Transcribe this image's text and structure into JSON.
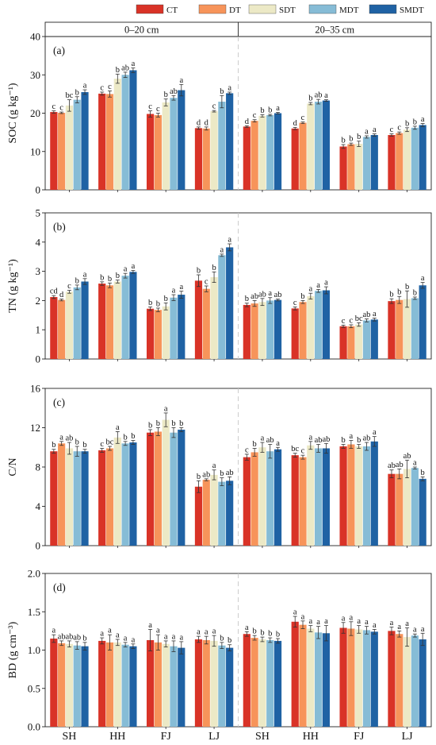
{
  "legend": [
    {
      "label": "CT",
      "color": "#d93327"
    },
    {
      "label": "DT",
      "color": "#f7945a"
    },
    {
      "label": "SDT",
      "color": "#ece9c6"
    },
    {
      "label": "MDT",
      "color": "#86bcd6"
    },
    {
      "label": "SMDT",
      "color": "#1f62a4"
    }
  ],
  "depths": [
    "0–20 cm",
    "20–35 cm"
  ],
  "sites": [
    "SH",
    "HH",
    "FJ",
    "LJ",
    "SH",
    "HH",
    "FJ",
    "LJ"
  ],
  "chart_data": [
    {
      "type": "bar",
      "panel": "(a)",
      "ylabel": "SOC (g kg⁻¹)",
      "ylim": [
        0,
        40
      ],
      "ticks": [
        0,
        10,
        20,
        30,
        40
      ],
      "values": [
        [
          20.3,
          20.1,
          22.0,
          23.5,
          25.5
        ],
        [
          25.1,
          25.0,
          29.0,
          30.0,
          31.2
        ],
        [
          19.8,
          19.5,
          22.8,
          24.0,
          26.0
        ],
        [
          16.1,
          16.0,
          20.5,
          23.0,
          25.2
        ],
        [
          16.5,
          18.0,
          19.3,
          19.5,
          20.0
        ],
        [
          16.0,
          17.5,
          22.5,
          23.0,
          23.3
        ],
        [
          11.3,
          11.9,
          12.0,
          13.8,
          14.3
        ],
        [
          14.3,
          14.8,
          15.7,
          16.2,
          16.9
        ]
      ],
      "errors": [
        [
          0.3,
          0.2,
          1.5,
          0.8,
          0.6
        ],
        [
          0.4,
          0.8,
          1.2,
          0.7,
          0.6
        ],
        [
          0.8,
          0.5,
          0.9,
          0.6,
          1.5
        ],
        [
          0.3,
          0.4,
          0.2,
          1.6,
          0.3
        ],
        [
          0.2,
          0.3,
          0.3,
          0.2,
          0.2
        ],
        [
          0.3,
          0.2,
          0.3,
          0.6,
          0.2
        ],
        [
          0.5,
          0.3,
          0.7,
          0.3,
          0.3
        ],
        [
          0.3,
          0.3,
          0.5,
          0.4,
          0.4
        ]
      ],
      "letters": [
        [
          "c",
          "c",
          "bc",
          "b",
          "a"
        ],
        [
          "c",
          "c",
          "b",
          "ab",
          "a"
        ],
        [
          "c",
          "c",
          "b",
          "ab",
          "a"
        ],
        [
          "d",
          "d",
          "c",
          "b",
          "a"
        ],
        [
          "d",
          "c",
          "b",
          "b",
          "a"
        ],
        [
          "d",
          "c",
          "b",
          "ab",
          "a"
        ],
        [
          "b",
          "b",
          "b",
          "a",
          "a"
        ],
        [
          "c",
          "c",
          "b",
          "b",
          "a"
        ]
      ]
    },
    {
      "type": "bar",
      "panel": "(b)",
      "ylabel": "TN (g kg⁻¹)",
      "ylim": [
        0,
        5
      ],
      "ticks": [
        0,
        1,
        2,
        3,
        4,
        5
      ],
      "values": [
        [
          2.12,
          2.02,
          2.3,
          2.45,
          2.65
        ],
        [
          2.58,
          2.52,
          2.65,
          2.85,
          2.98
        ],
        [
          1.72,
          1.68,
          1.8,
          2.1,
          2.2
        ],
        [
          2.68,
          2.4,
          2.8,
          3.55,
          3.82
        ],
        [
          1.85,
          1.9,
          1.95,
          2.0,
          2.02
        ],
        [
          1.73,
          1.95,
          2.15,
          2.33,
          2.35
        ],
        [
          1.12,
          1.12,
          1.18,
          1.32,
          1.35
        ],
        [
          1.98,
          2.02,
          2.05,
          2.08,
          2.52
        ]
      ],
      "errors": [
        [
          0.05,
          0.03,
          0.05,
          0.08,
          0.1
        ],
        [
          0.06,
          0.08,
          0.05,
          0.08,
          0.05
        ],
        [
          0.06,
          0.06,
          0.12,
          0.1,
          0.12
        ],
        [
          0.2,
          0.1,
          0.18,
          0.04,
          0.12
        ],
        [
          0.06,
          0.1,
          0.12,
          0.1,
          0.03
        ],
        [
          0.05,
          0.05,
          0.1,
          0.05,
          0.12
        ],
        [
          0.04,
          0.05,
          0.06,
          0.05,
          0.05
        ],
        [
          0.08,
          0.12,
          0.28,
          0.04,
          0.1
        ]
      ],
      "letters": [
        [
          "cd",
          "d",
          "c",
          "b",
          "a"
        ],
        [
          "b",
          "b",
          "b",
          "a",
          "a"
        ],
        [
          "b",
          "b",
          "b",
          "a",
          "a"
        ],
        [
          "b",
          "c",
          "b",
          "a",
          "a"
        ],
        [
          "b",
          "ab",
          "ab",
          "a",
          "ab"
        ],
        [
          "c",
          "b",
          "a",
          "a",
          "a"
        ],
        [
          "c",
          "c",
          "bc",
          "ab",
          "a"
        ],
        [
          "b",
          "b",
          "b",
          "b",
          "a"
        ]
      ]
    },
    {
      "type": "bar",
      "panel": "(c)",
      "ylabel": "C/N",
      "ylim": [
        0,
        16
      ],
      "ticks": [
        0,
        4,
        8,
        12,
        16
      ],
      "values": [
        [
          9.6,
          10.4,
          9.9,
          9.6,
          9.6
        ],
        [
          9.7,
          9.9,
          11.0,
          10.4,
          10.5
        ],
        [
          11.5,
          11.6,
          12.8,
          11.5,
          11.8
        ],
        [
          6.0,
          6.7,
          7.2,
          6.5,
          6.6
        ],
        [
          9.0,
          9.5,
          10.0,
          9.6,
          9.8
        ],
        [
          9.2,
          9.0,
          10.2,
          9.9,
          9.9
        ],
        [
          10.1,
          10.3,
          10.1,
          10.1,
          10.6
        ],
        [
          7.3,
          7.3,
          7.8,
          7.9,
          6.8
        ]
      ],
      "errors": [
        [
          0.2,
          0.2,
          0.6,
          0.5,
          0.2
        ],
        [
          0.2,
          0.2,
          0.6,
          0.2,
          0.2
        ],
        [
          0.3,
          0.4,
          0.7,
          0.5,
          0.2
        ],
        [
          0.6,
          0.1,
          0.5,
          0.4,
          0.4
        ],
        [
          0.3,
          0.4,
          0.5,
          0.7,
          0.2
        ],
        [
          0.2,
          0.2,
          0.4,
          0.4,
          0.5
        ],
        [
          0.2,
          0.4,
          0.2,
          0.4,
          0.5
        ],
        [
          0.4,
          0.5,
          0.9,
          0.1,
          0.2
        ]
      ],
      "letters": [
        [
          "b",
          "a",
          "ab",
          "b",
          "b"
        ],
        [
          "c",
          "bc",
          "a",
          "b",
          "b"
        ],
        [
          "b",
          "b",
          "a",
          "b",
          "b"
        ],
        [
          "b",
          "ab",
          "a",
          "b",
          "ab"
        ],
        [
          "c",
          "b",
          "a",
          "ab",
          "a"
        ],
        [
          "bc",
          "c",
          "a",
          "ab",
          "ab"
        ],
        [
          "b",
          "a",
          "b",
          "ab",
          "a"
        ],
        [
          "ab",
          "ab",
          "ab",
          "a",
          "b"
        ]
      ]
    },
    {
      "type": "bar",
      "panel": "(d)",
      "ylabel": "BD (g cm⁻³)",
      "ylim": [
        0,
        2
      ],
      "ticks": [
        "0.0",
        "0.5",
        "1.0",
        "1.5",
        "2.0"
      ],
      "values": [
        [
          1.15,
          1.09,
          1.08,
          1.06,
          1.05
        ],
        [
          1.12,
          1.1,
          1.1,
          1.07,
          1.05
        ],
        [
          1.13,
          1.1,
          1.08,
          1.05,
          1.03
        ],
        [
          1.14,
          1.13,
          1.12,
          1.06,
          1.03
        ],
        [
          1.21,
          1.16,
          1.14,
          1.13,
          1.12
        ],
        [
          1.37,
          1.33,
          1.28,
          1.23,
          1.22
        ],
        [
          1.29,
          1.28,
          1.27,
          1.26,
          1.24
        ],
        [
          1.25,
          1.21,
          1.17,
          1.19,
          1.14
        ]
      ],
      "errors": [
        [
          0.05,
          0.03,
          0.04,
          0.05,
          0.05
        ],
        [
          0.04,
          0.1,
          0.04,
          0.03,
          0.03
        ],
        [
          0.14,
          0.1,
          0.04,
          0.07,
          0.08
        ],
        [
          0.04,
          0.05,
          0.07,
          0.04,
          0.04
        ],
        [
          0.03,
          0.03,
          0.03,
          0.03,
          0.03
        ],
        [
          0.07,
          0.05,
          0.04,
          0.08,
          0.1
        ],
        [
          0.07,
          0.09,
          0.05,
          0.05,
          0.03
        ],
        [
          0.05,
          0.04,
          0.12,
          0.02,
          0.08
        ]
      ],
      "letters": [
        [
          "a",
          "ab",
          "ab",
          "ab",
          "b"
        ],
        [
          "a",
          "a",
          "a",
          "a",
          "a"
        ],
        [
          "a",
          "a",
          "a",
          "a",
          "a"
        ],
        [
          "a",
          "a",
          "a",
          "b",
          "b"
        ],
        [
          "a",
          "b",
          "b",
          "b",
          "b"
        ],
        [
          "a",
          "a",
          "a",
          "a",
          "a"
        ],
        [
          "a",
          "a",
          "a",
          "a",
          "a"
        ],
        [
          "a",
          "a",
          "a",
          "a",
          "a"
        ]
      ]
    }
  ]
}
